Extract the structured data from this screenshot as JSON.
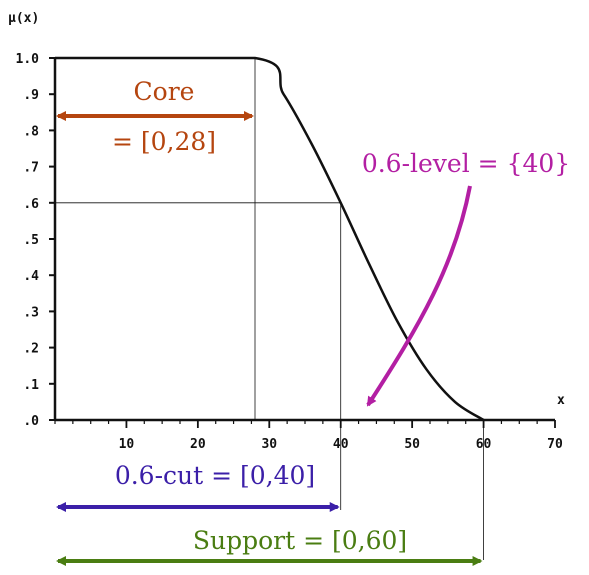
{
  "chart_data": {
    "type": "line",
    "y_axis_label": "μ(x)",
    "x_axis_label": "x",
    "y_ticks": [
      "1.0",
      ".9",
      ".8",
      ".7",
      ".6",
      ".5",
      ".4",
      ".3",
      ".2",
      ".1",
      ".0"
    ],
    "x_ticks": [
      "10",
      "20",
      "30",
      "40",
      "50",
      "60",
      "70"
    ],
    "xlim": [
      0,
      70
    ],
    "ylim": [
      0,
      1
    ],
    "membership_function": {
      "x": [
        0,
        28,
        32,
        36,
        40,
        44,
        48,
        52,
        56,
        60
      ],
      "y": [
        1.0,
        1.0,
        0.9,
        0.76,
        0.6,
        0.43,
        0.27,
        0.14,
        0.05,
        0.0
      ]
    },
    "alpha_level": 0.6,
    "grid": false
  },
  "colors": {
    "core": "#b5450f",
    "level": "#b31fa3",
    "cut": "#3b1fa8",
    "support": "#4a7d12",
    "curve": "#111111"
  },
  "annotations": {
    "core_title": "Core",
    "core_value": "= [0,28]",
    "level": "0.6-level = {40}",
    "cut": "0.6-cut = [0,40]",
    "support": "Support = [0,60]"
  }
}
